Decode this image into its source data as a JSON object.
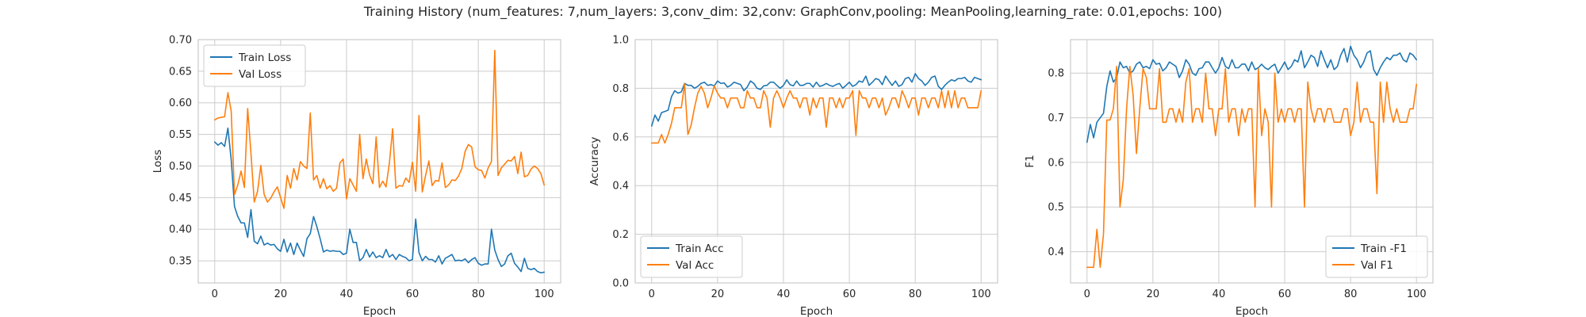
{
  "figure_title": "Training History (num_features: 7,num_layers: 3,conv_dim: 32,conv: GraphConv,pooling: MeanPooling,learning_rate: 0.01,epochs: 100)",
  "colors": {
    "train": "#1f77b4",
    "val": "#ff7f0e",
    "grid": "#cccccc"
  },
  "chart_data": [
    {
      "type": "line",
      "xlabel": "Epoch",
      "ylabel": "Loss",
      "xlim": [
        -5,
        105
      ],
      "ylim": [
        0.315,
        0.7
      ],
      "xticks": [
        0,
        20,
        40,
        60,
        80,
        100
      ],
      "yticks": [
        0.35,
        0.4,
        0.45,
        0.5,
        0.55,
        0.6,
        0.65,
        0.7
      ],
      "ytick_decimals": 2,
      "grid": true,
      "legend_loc": "upper-left",
      "series": [
        {
          "name": "Train Loss",
          "color": "#1f77b4",
          "values": [
            0.538,
            0.533,
            0.537,
            0.531,
            0.56,
            0.51,
            0.436,
            0.42,
            0.41,
            0.41,
            0.387,
            0.431,
            0.381,
            0.377,
            0.389,
            0.375,
            0.378,
            0.375,
            0.376,
            0.369,
            0.365,
            0.384,
            0.364,
            0.378,
            0.36,
            0.378,
            0.367,
            0.357,
            0.385,
            0.393,
            0.42,
            0.404,
            0.385,
            0.364,
            0.367,
            0.365,
            0.366,
            0.365,
            0.365,
            0.36,
            0.362,
            0.4,
            0.379,
            0.379,
            0.35,
            0.355,
            0.368,
            0.356,
            0.364,
            0.355,
            0.358,
            0.355,
            0.368,
            0.356,
            0.36,
            0.352,
            0.36,
            0.357,
            0.355,
            0.35,
            0.352,
            0.416,
            0.363,
            0.35,
            0.357,
            0.352,
            0.352,
            0.348,
            0.358,
            0.345,
            0.354,
            0.357,
            0.36,
            0.35,
            0.351,
            0.35,
            0.353,
            0.347,
            0.352,
            0.355,
            0.346,
            0.343,
            0.345,
            0.345,
            0.4,
            0.367,
            0.352,
            0.341,
            0.345,
            0.358,
            0.362,
            0.346,
            0.34,
            0.333,
            0.354,
            0.338,
            0.336,
            0.338,
            0.333,
            0.331,
            0.332
          ]
        },
        {
          "name": "Val Loss",
          "color": "#ff7f0e",
          "values": [
            0.573,
            0.576,
            0.577,
            0.578,
            0.616,
            0.587,
            0.455,
            0.47,
            0.492,
            0.466,
            0.591,
            0.52,
            0.443,
            0.46,
            0.501,
            0.455,
            0.443,
            0.449,
            0.459,
            0.467,
            0.45,
            0.433,
            0.485,
            0.465,
            0.496,
            0.478,
            0.507,
            0.5,
            0.496,
            0.584,
            0.478,
            0.485,
            0.465,
            0.48,
            0.464,
            0.469,
            0.46,
            0.465,
            0.505,
            0.511,
            0.448,
            0.48,
            0.47,
            0.46,
            0.55,
            0.48,
            0.511,
            0.486,
            0.472,
            0.546,
            0.466,
            0.476,
            0.467,
            0.504,
            0.559,
            0.465,
            0.469,
            0.468,
            0.481,
            0.474,
            0.506,
            0.46,
            0.58,
            0.459,
            0.485,
            0.508,
            0.469,
            0.477,
            0.476,
            0.505,
            0.466,
            0.47,
            0.478,
            0.477,
            0.484,
            0.496,
            0.523,
            0.534,
            0.53,
            0.499,
            0.494,
            0.493,
            0.481,
            0.497,
            0.507,
            0.683,
            0.485,
            0.497,
            0.503,
            0.509,
            0.508,
            0.515,
            0.488,
            0.522,
            0.483,
            0.485,
            0.495,
            0.5,
            0.496,
            0.488,
            0.47
          ]
        }
      ]
    },
    {
      "type": "line",
      "xlabel": "Epoch",
      "ylabel": "Accuracy",
      "xlim": [
        -5,
        105
      ],
      "ylim": [
        0.0,
        1.0
      ],
      "xticks": [
        0,
        20,
        40,
        60,
        80,
        100
      ],
      "yticks": [
        0.0,
        0.2,
        0.4,
        0.6,
        0.8,
        1.0
      ],
      "ytick_decimals": 1,
      "grid": true,
      "legend_loc": "lower-left",
      "series": [
        {
          "name": "Train Acc",
          "color": "#1f77b4",
          "values": [
            0.645,
            0.69,
            0.665,
            0.7,
            0.705,
            0.71,
            0.765,
            0.79,
            0.78,
            0.785,
            0.82,
            0.812,
            0.812,
            0.8,
            0.808,
            0.82,
            0.825,
            0.812,
            0.815,
            0.81,
            0.83,
            0.82,
            0.822,
            0.805,
            0.812,
            0.825,
            0.82,
            0.815,
            0.79,
            0.805,
            0.83,
            0.82,
            0.8,
            0.795,
            0.81,
            0.812,
            0.825,
            0.825,
            0.812,
            0.8,
            0.812,
            0.835,
            0.815,
            0.81,
            0.83,
            0.812,
            0.812,
            0.82,
            0.82,
            0.805,
            0.825,
            0.808,
            0.812,
            0.82,
            0.812,
            0.808,
            0.815,
            0.82,
            0.8,
            0.812,
            0.825,
            0.808,
            0.815,
            0.83,
            0.825,
            0.85,
            0.812,
            0.825,
            0.84,
            0.835,
            0.815,
            0.85,
            0.83,
            0.812,
            0.83,
            0.808,
            0.815,
            0.84,
            0.845,
            0.825,
            0.86,
            0.84,
            0.83,
            0.812,
            0.825,
            0.845,
            0.85,
            0.808,
            0.795,
            0.812,
            0.825,
            0.835,
            0.83,
            0.84,
            0.84,
            0.845,
            0.83,
            0.825,
            0.845,
            0.84,
            0.835
          ]
        },
        {
          "name": "Val Acc",
          "color": "#ff7f0e",
          "values": [
            0.575,
            0.575,
            0.575,
            0.61,
            0.575,
            0.61,
            0.655,
            0.72,
            0.72,
            0.72,
            0.818,
            0.61,
            0.65,
            0.72,
            0.78,
            0.808,
            0.78,
            0.72,
            0.76,
            0.81,
            0.78,
            0.76,
            0.76,
            0.72,
            0.76,
            0.76,
            0.76,
            0.72,
            0.72,
            0.79,
            0.76,
            0.76,
            0.72,
            0.72,
            0.79,
            0.76,
            0.64,
            0.76,
            0.79,
            0.76,
            0.72,
            0.76,
            0.79,
            0.76,
            0.76,
            0.72,
            0.76,
            0.76,
            0.69,
            0.76,
            0.72,
            0.76,
            0.76,
            0.64,
            0.76,
            0.76,
            0.72,
            0.76,
            0.72,
            0.76,
            0.76,
            0.79,
            0.606,
            0.79,
            0.76,
            0.76,
            0.72,
            0.76,
            0.76,
            0.72,
            0.76,
            0.69,
            0.72,
            0.76,
            0.76,
            0.72,
            0.79,
            0.76,
            0.72,
            0.76,
            0.76,
            0.69,
            0.76,
            0.76,
            0.72,
            0.76,
            0.76,
            0.72,
            0.79,
            0.72,
            0.79,
            0.72,
            0.79,
            0.72,
            0.76,
            0.76,
            0.72,
            0.72,
            0.72,
            0.72,
            0.79
          ]
        }
      ]
    },
    {
      "type": "line",
      "xlabel": "Epoch",
      "ylabel": "F1",
      "xlim": [
        -5,
        105
      ],
      "ylim": [
        0.33,
        0.875
      ],
      "xticks": [
        0,
        20,
        40,
        60,
        80,
        100
      ],
      "yticks": [
        0.4,
        0.5,
        0.6,
        0.7,
        0.8
      ],
      "ytick_decimals": 1,
      "grid": true,
      "legend_loc": "lower-right",
      "series": [
        {
          "name": "Train -F1",
          "color": "#1f77b4",
          "values": [
            0.645,
            0.685,
            0.655,
            0.69,
            0.7,
            0.71,
            0.77,
            0.805,
            0.78,
            0.79,
            0.825,
            0.812,
            0.815,
            0.8,
            0.805,
            0.82,
            0.825,
            0.812,
            0.815,
            0.81,
            0.83,
            0.82,
            0.822,
            0.805,
            0.812,
            0.825,
            0.82,
            0.815,
            0.79,
            0.805,
            0.83,
            0.82,
            0.8,
            0.795,
            0.81,
            0.812,
            0.825,
            0.825,
            0.812,
            0.8,
            0.812,
            0.835,
            0.815,
            0.81,
            0.83,
            0.812,
            0.812,
            0.82,
            0.82,
            0.805,
            0.825,
            0.808,
            0.812,
            0.82,
            0.812,
            0.808,
            0.815,
            0.82,
            0.8,
            0.812,
            0.825,
            0.808,
            0.815,
            0.83,
            0.825,
            0.85,
            0.812,
            0.825,
            0.84,
            0.835,
            0.815,
            0.85,
            0.83,
            0.812,
            0.83,
            0.808,
            0.815,
            0.84,
            0.855,
            0.825,
            0.86,
            0.84,
            0.83,
            0.812,
            0.825,
            0.845,
            0.85,
            0.808,
            0.795,
            0.812,
            0.825,
            0.835,
            0.83,
            0.84,
            0.84,
            0.845,
            0.83,
            0.825,
            0.845,
            0.84,
            0.83
          ]
        },
        {
          "name": "Val F1",
          "color": "#ff7f0e",
          "values": [
            0.365,
            0.365,
            0.365,
            0.45,
            0.365,
            0.44,
            0.695,
            0.695,
            0.72,
            0.815,
            0.5,
            0.56,
            0.72,
            0.815,
            0.75,
            0.62,
            0.72,
            0.81,
            0.79,
            0.72,
            0.72,
            0.72,
            0.81,
            0.69,
            0.69,
            0.72,
            0.72,
            0.69,
            0.72,
            0.69,
            0.78,
            0.81,
            0.69,
            0.72,
            0.72,
            0.69,
            0.8,
            0.72,
            0.72,
            0.66,
            0.72,
            0.72,
            0.81,
            0.69,
            0.72,
            0.72,
            0.66,
            0.72,
            0.69,
            0.72,
            0.72,
            0.5,
            0.81,
            0.66,
            0.72,
            0.69,
            0.5,
            0.8,
            0.69,
            0.72,
            0.69,
            0.72,
            0.72,
            0.69,
            0.72,
            0.72,
            0.5,
            0.78,
            0.72,
            0.69,
            0.72,
            0.72,
            0.69,
            0.72,
            0.72,
            0.69,
            0.69,
            0.69,
            0.72,
            0.72,
            0.66,
            0.69,
            0.78,
            0.69,
            0.72,
            0.72,
            0.69,
            0.69,
            0.53,
            0.78,
            0.69,
            0.78,
            0.72,
            0.69,
            0.72,
            0.69,
            0.69,
            0.69,
            0.72,
            0.72,
            0.775
          ]
        }
      ]
    }
  ]
}
